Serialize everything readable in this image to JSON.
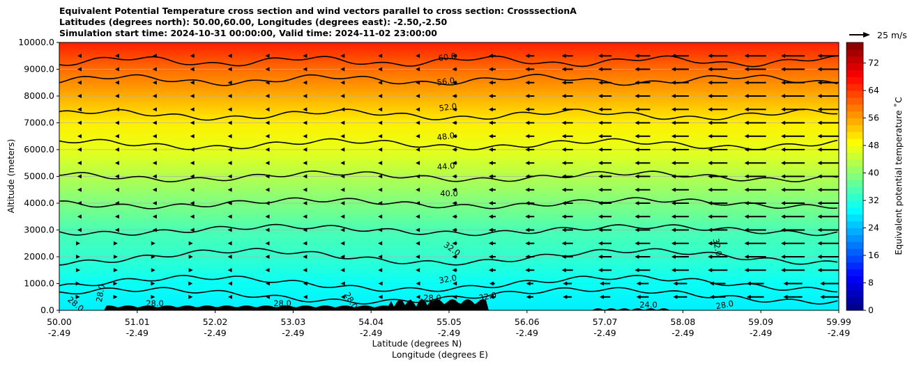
{
  "chart_data": {
    "type": "heatmap",
    "title_lines": [
      "Equivalent Potential Temperature cross section and wind vectors parallel to cross section: CrosssectionA",
      "Latitudes (degrees north): 50.00,60.00, Longitudes (degrees east): -2.50,-2.50",
      "Simulation start time: 2024-10-31 00:00:00, Valid time: 2024-11-02 23:00:00"
    ],
    "ylabel": "Altitude (meters)",
    "xlabel_lat": "Latitude (degrees N)",
    "xlabel_lon": "Longitude (degrees E)",
    "ylim": [
      0,
      10000
    ],
    "y_ticks": [
      "0.0",
      "1000.0",
      "2000.0",
      "3000.0",
      "4000.0",
      "5000.0",
      "6000.0",
      "7000.0",
      "8000.0",
      "9000.0",
      "10000.0"
    ],
    "x_ticks_lat": [
      "50.00",
      "51.01",
      "52.02",
      "53.03",
      "54.04",
      "55.05",
      "56.06",
      "57.07",
      "58.08",
      "59.09",
      "59.99"
    ],
    "x_ticks_lon": [
      "-2.49",
      "-2.49",
      "-2.49",
      "-2.49",
      "-2.49",
      "-2.49",
      "-2.49",
      "-2.49",
      "-2.49",
      "-2.49",
      "-2.49"
    ],
    "colorbar_label": "Equivalent potential temperature ˚C",
    "colorbar_ticks": [
      "0",
      "8",
      "16",
      "24",
      "32",
      "40",
      "48",
      "56",
      "64",
      "72"
    ],
    "colorbar_range": [
      0,
      78
    ],
    "wind_ref": "25 m/s",
    "contour_labels": [
      "60.0",
      "56.0",
      "52.0",
      "48.0",
      "44.0",
      "40.0",
      "32.0",
      "32.0",
      "28.0",
      "28.0",
      "32.0",
      "32.0",
      "28.0",
      "28.0",
      "28.0",
      "28.0",
      "24.0",
      "28.0"
    ],
    "bands": [
      {
        "z": 10000,
        "value": 66
      },
      {
        "z": 9000,
        "value": 60
      },
      {
        "z": 8000,
        "value": 55
      },
      {
        "z": 7000,
        "value": 50
      },
      {
        "z": 6000,
        "value": 47
      },
      {
        "z": 5000,
        "value": 43
      },
      {
        "z": 4000,
        "value": 39
      },
      {
        "z": 3000,
        "value": 35
      },
      {
        "z": 2000,
        "value": 33
      },
      {
        "z": 1000,
        "value": 30
      },
      {
        "z": 0,
        "value": 28
      }
    ]
  },
  "colors": {
    "grid": "#b0b0b0",
    "terrain": "#000000",
    "contour": "#000000"
  }
}
